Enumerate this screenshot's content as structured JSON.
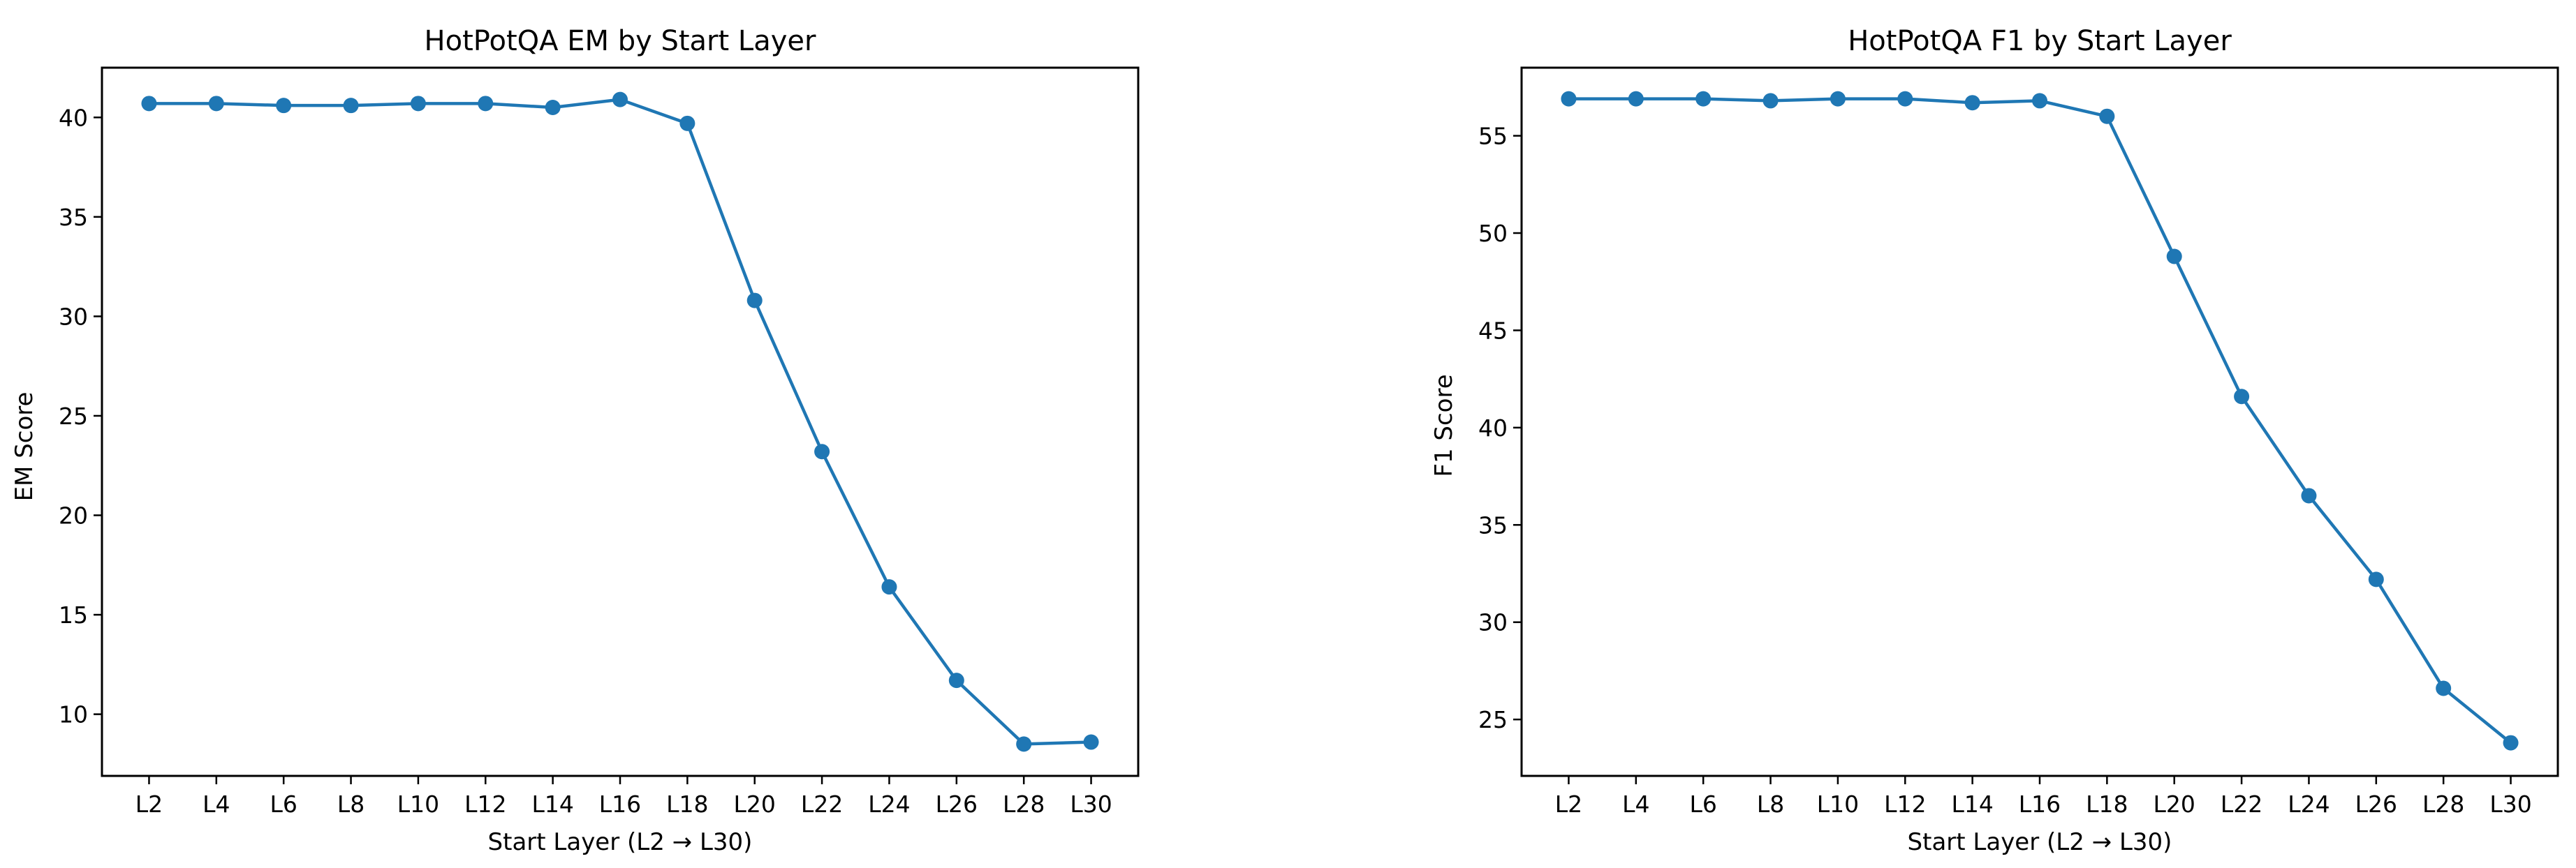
{
  "chart_data": [
    {
      "type": "line",
      "title": "HotPotQA EM by Start Layer",
      "xlabel": "Start Layer (L2 → L30)",
      "ylabel": "EM Score",
      "categories": [
        "L2",
        "L4",
        "L6",
        "L8",
        "L10",
        "L12",
        "L14",
        "L16",
        "L18",
        "L20",
        "L22",
        "L24",
        "L26",
        "L28",
        "L30"
      ],
      "series": [
        {
          "values": [
            40.7,
            40.7,
            40.6,
            40.6,
            40.7,
            40.7,
            40.5,
            40.9,
            39.7,
            30.8,
            23.2,
            16.4,
            11.7,
            8.5,
            8.6
          ]
        }
      ],
      "yticks": [
        10,
        15,
        20,
        25,
        30,
        35,
        40
      ],
      "ylim": [
        6.9,
        42.5
      ],
      "grid": false,
      "color": "#1f77b4"
    },
    {
      "type": "line",
      "title": "HotPotQA F1 by Start Layer",
      "xlabel": "Start Layer (L2 → L30)",
      "ylabel": "F1 Score",
      "categories": [
        "L2",
        "L4",
        "L6",
        "L8",
        "L10",
        "L12",
        "L14",
        "L16",
        "L18",
        "L20",
        "L22",
        "L24",
        "L26",
        "L28",
        "L30"
      ],
      "series": [
        {
          "values": [
            56.9,
            56.9,
            56.9,
            56.8,
            56.9,
            56.9,
            56.7,
            56.8,
            56.0,
            48.8,
            41.6,
            36.5,
            32.2,
            26.6,
            23.8
          ]
        }
      ],
      "yticks": [
        25,
        30,
        35,
        40,
        45,
        50,
        55
      ],
      "ylim": [
        22.1,
        58.5
      ],
      "grid": false,
      "color": "#1f77b4"
    }
  ]
}
